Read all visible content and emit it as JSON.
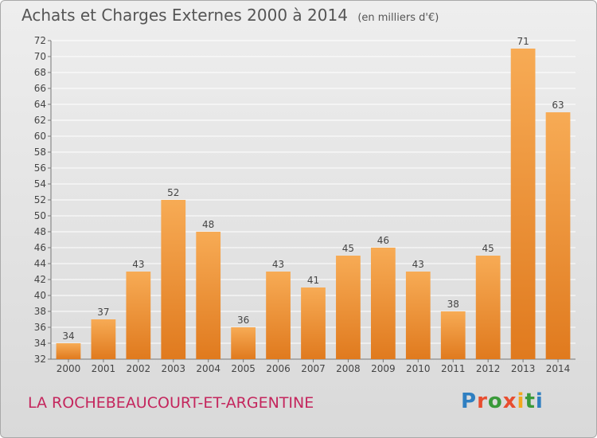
{
  "title": "Achats et Charges Externes 2000 à 2014",
  "unit_note": "(en milliers d'€)",
  "commune": "LA ROCHEBEAUCOURT-ET-ARGENTINE",
  "logo": "Proxiti",
  "colors": {
    "bar_light": "#f7ab55",
    "bar_dark": "#e07a1e",
    "grid": "#ffffff",
    "commune_text": "#c4265d",
    "logo_letters": [
      "#2f7fc1",
      "#e84d2f",
      "#3a9a3a",
      "#e84d2f",
      "#f2a81d",
      "#3a9a3a",
      "#2f7fc1"
    ]
  },
  "chart_data": {
    "type": "bar",
    "categories": [
      "2000",
      "2001",
      "2002",
      "2003",
      "2004",
      "2005",
      "2006",
      "2007",
      "2008",
      "2009",
      "2010",
      "2011",
      "2012",
      "2013",
      "2014"
    ],
    "values": [
      34,
      37,
      43,
      52,
      48,
      36,
      43,
      41,
      45,
      46,
      43,
      38,
      45,
      71,
      63
    ],
    "data_labels": [
      "34",
      "37",
      "43",
      "52",
      "48",
      "36",
      "43",
      "41",
      "45",
      "46",
      "43",
      "38",
      "45",
      "71",
      "63"
    ],
    "ylim": [
      32,
      72
    ],
    "yticks": [
      "32",
      "34",
      "36",
      "38",
      "40",
      "42",
      "44",
      "46",
      "48",
      "50",
      "52",
      "54",
      "56",
      "58",
      "60",
      "62",
      "64",
      "66",
      "68",
      "70",
      "72"
    ],
    "grid": true
  }
}
